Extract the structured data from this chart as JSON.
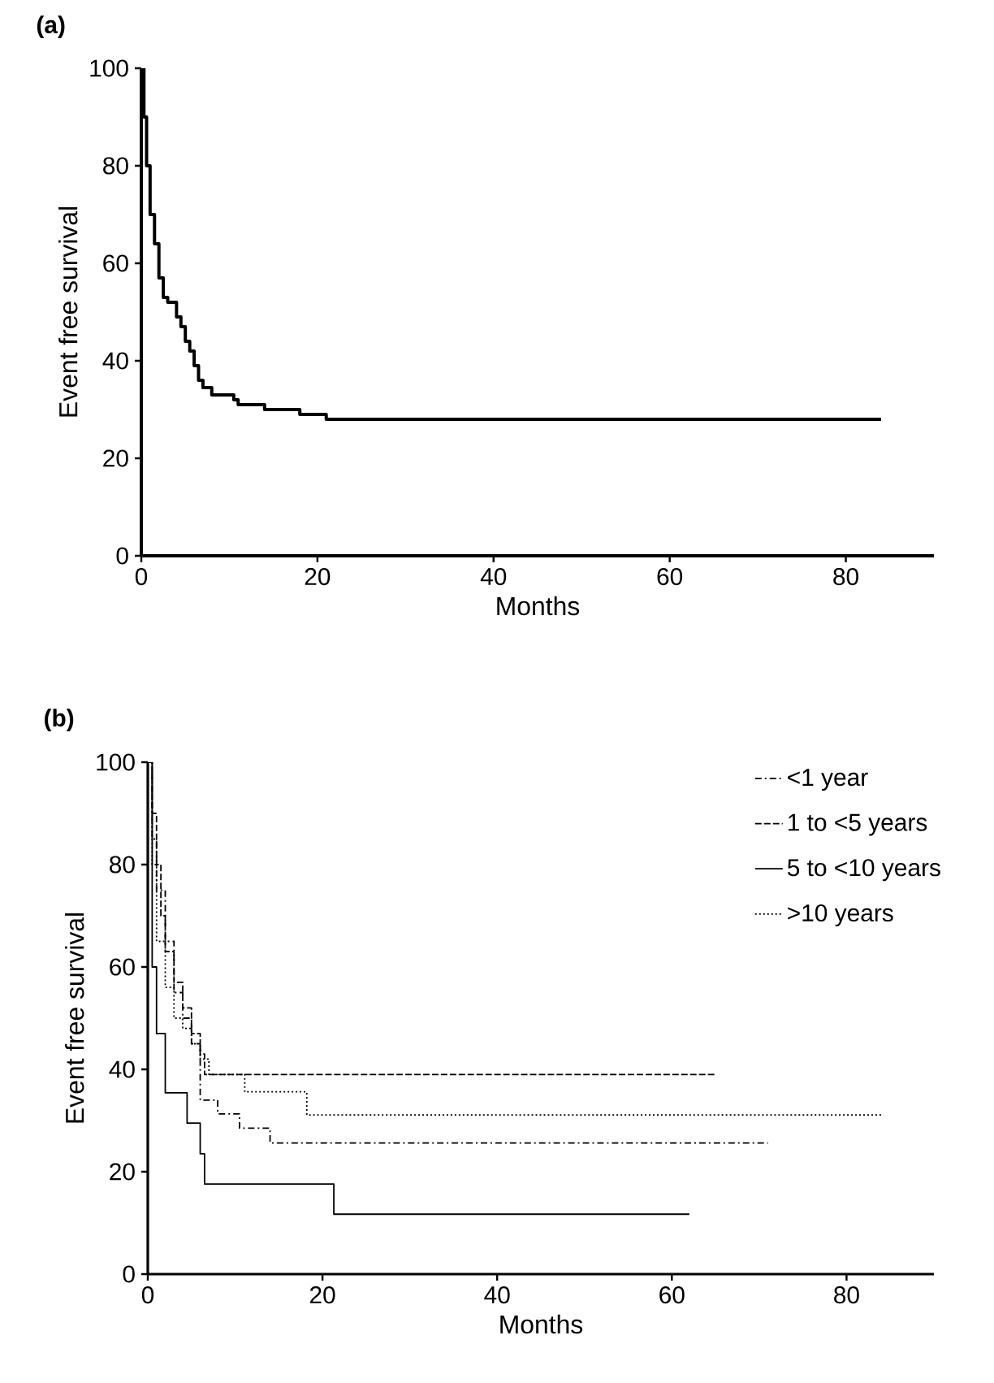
{
  "chart_data": [
    {
      "type": "step",
      "title": "(a)",
      "xlabel": "Months",
      "ylabel": "Event free survival",
      "xlim": [
        0,
        90
      ],
      "ylim": [
        0,
        100
      ],
      "xticks": [
        0,
        20,
        40,
        60,
        80
      ],
      "yticks": [
        0,
        20,
        40,
        60,
        80,
        100
      ],
      "grid": false,
      "legend": false,
      "series": [
        {
          "color": "#000000",
          "line_style": "solid",
          "x": [
            0,
            0.3,
            0.6,
            1,
            1.5,
            2,
            2.5,
            3,
            4,
            4.5,
            5,
            5.5,
            6,
            6.5,
            7,
            8,
            10,
            10.5,
            11,
            14,
            18,
            21,
            84
          ],
          "values": [
            100,
            90,
            80,
            70,
            64,
            57,
            53,
            52,
            49,
            47,
            44,
            42,
            39,
            36,
            34.5,
            33,
            33,
            32,
            31,
            30,
            29,
            28,
            28
          ]
        }
      ]
    },
    {
      "type": "step",
      "title": "(b)",
      "xlabel": "Months",
      "ylabel": "Event free survival",
      "xlim": [
        0,
        90
      ],
      "ylim": [
        0,
        100
      ],
      "xticks": [
        0,
        20,
        40,
        60,
        80
      ],
      "yticks": [
        0,
        20,
        40,
        60,
        80,
        100
      ],
      "grid": false,
      "legend": "top right",
      "series": [
        {
          "name": "<1 year",
          "color": "#000000",
          "line_style": "dashdotted",
          "x": [
            0,
            0.5,
            1,
            2,
            3,
            4,
            5,
            6,
            8,
            10.5,
            14,
            71
          ],
          "values": [
            100,
            85,
            75,
            65,
            55,
            50,
            45,
            34,
            31.3,
            28.5,
            25.6,
            25.6
          ]
        },
        {
          "name": "1 to <5 years",
          "color": "#000000",
          "line_style": "dashed",
          "x": [
            0,
            0.5,
            1,
            1.5,
            2,
            3,
            4,
            5,
            6,
            6.5,
            65
          ],
          "values": [
            100,
            90,
            80,
            70,
            63,
            57,
            52,
            47,
            43,
            39,
            39
          ]
        },
        {
          "name": "5 to <10 years",
          "color": "#000000",
          "line_style": "solid",
          "x": [
            0,
            0.5,
            1,
            2,
            4.5,
            6,
            6.5,
            21.3,
            62
          ],
          "values": [
            100,
            60,
            47,
            35.4,
            29.5,
            23.5,
            17.6,
            11.7,
            11.7
          ]
        },
        {
          "name": ">10 years",
          "color": "#000000",
          "line_style": "dotted",
          "x": [
            0,
            0.5,
            1,
            2,
            3,
            4,
            5,
            6,
            7,
            11.1,
            18.2,
            84
          ],
          "values": [
            100,
            80,
            65,
            56,
            50,
            48,
            45,
            42,
            39,
            35.6,
            31.1,
            31.1
          ]
        }
      ]
    }
  ]
}
